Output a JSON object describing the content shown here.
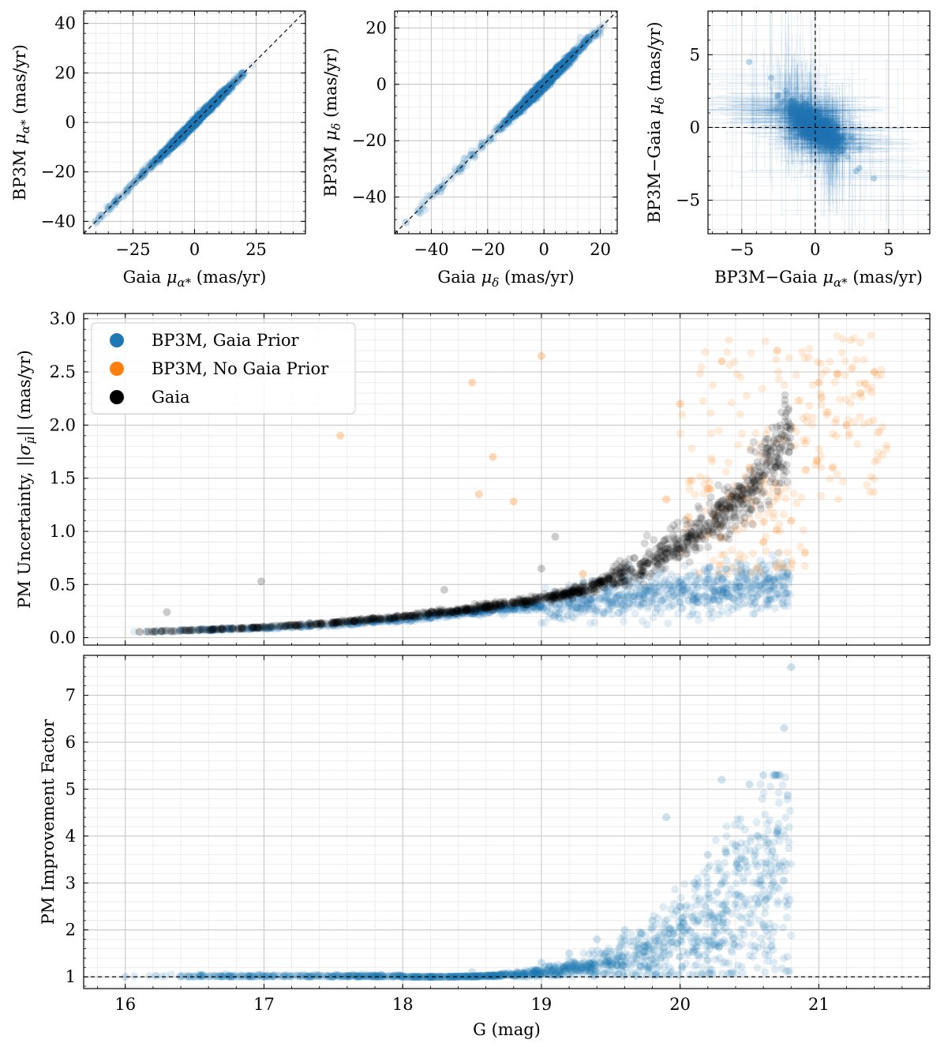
{
  "chart_data": [
    {
      "id": "top-left",
      "type": "scatter",
      "xlabel": "Gaia μα* (mas/yr)",
      "ylabel": "BP3M μα* (mas/yr)",
      "xlim": [
        -45,
        45
      ],
      "ylim": [
        -45,
        45
      ],
      "xticks": [
        -25,
        0,
        25
      ],
      "yticks": [
        -40,
        -20,
        0,
        20,
        40
      ],
      "xtick_labels": [
        "−25",
        "0",
        "25"
      ],
      "ytick_labels": [
        "−40",
        "−20",
        "0",
        "20",
        "40"
      ],
      "grid": true,
      "reference_line": "y = x (dashed)",
      "series": [
        {
          "color": "#1f77b4",
          "description": "points tightly along y=x",
          "x": [
            -40,
            -35,
            -31,
            -29,
            -26,
            -24,
            -22,
            -20,
            -18,
            -16,
            -14,
            -12,
            -10,
            -8,
            -6,
            -4,
            -2,
            0,
            1,
            2,
            3,
            4,
            5,
            6,
            7,
            8,
            9,
            10,
            12,
            14,
            16,
            18,
            20
          ],
          "y": [
            -40,
            -35,
            -31,
            -30,
            -26,
            -24,
            -22,
            -20,
            -18,
            -16,
            -14,
            -12,
            -10,
            -8,
            -6,
            -4,
            -2,
            0,
            1,
            2,
            3,
            4,
            5,
            6,
            7,
            8,
            9,
            10,
            12,
            14,
            16,
            18,
            20
          ]
        }
      ]
    },
    {
      "id": "top-middle",
      "type": "scatter",
      "xlabel": "Gaia μδ (mas/yr)",
      "ylabel": "BP3M μδ (mas/yr)",
      "xlim": [
        -53,
        26
      ],
      "ylim": [
        -53,
        26
      ],
      "xticks": [
        -40,
        -20,
        0,
        20
      ],
      "yticks": [
        -40,
        -20,
        0,
        20
      ],
      "xtick_labels": [
        "−40",
        "−20",
        "0",
        "20"
      ],
      "ytick_labels": [
        "−40",
        "−20",
        "0",
        "20"
      ],
      "grid": true,
      "reference_line": "y = x (dashed)",
      "series": [
        {
          "color": "#1f77b4",
          "x": [
            -49,
            -36,
            -30,
            -25,
            -22,
            -19,
            -16,
            -13,
            -10,
            -8,
            -6,
            -4,
            -2,
            0,
            1,
            2,
            3,
            4,
            5,
            6,
            7,
            8,
            9,
            10,
            12,
            14,
            16,
            18,
            20
          ],
          "y": [
            -49,
            -36,
            -30,
            -25,
            -22,
            -19,
            -16,
            -13,
            -10,
            -8,
            -6,
            -4,
            -2,
            0,
            1,
            2,
            3,
            4,
            5,
            6,
            7,
            8,
            9,
            10,
            12,
            14,
            16,
            18,
            20
          ]
        }
      ]
    },
    {
      "id": "top-right",
      "type": "scatter",
      "xlabel": "BP3M−Gaia μα* (mas/yr)",
      "ylabel": "BP3M−Gaia μδ (mas/yr)",
      "xlim": [
        -7.3,
        7.8
      ],
      "ylim": [
        -7.3,
        8.0
      ],
      "xticks": [
        -5,
        0,
        5
      ],
      "yticks": [
        -5,
        0,
        5
      ],
      "xtick_labels": [
        "−5",
        "0",
        "5"
      ],
      "ytick_labels": [
        "−5",
        "0",
        "5"
      ],
      "grid": true,
      "reference_lines": [
        "x = 0 (dashed)",
        "y = 0 (dashed)"
      ],
      "series": [
        {
          "color": "#1f77b4",
          "description": "cloud of residuals with error bars, anti-correlated",
          "x": [
            -0.5,
            0.3,
            -1.2,
            1.0,
            -2.0,
            2.2,
            -0.8,
            0.6,
            -3.0,
            3.0,
            -1.5,
            1.5,
            0.0,
            -0.3,
            0.8,
            -4.5,
            4.0,
            -2.5,
            2.8,
            -1.0,
            1.2
          ],
          "y": [
            0.8,
            -0.5,
            1.6,
            -1.2,
            2.5,
            -2.0,
            1.0,
            -0.6,
            3.4,
            -2.8,
            1.8,
            -1.5,
            0.2,
            0.6,
            -0.9,
            4.5,
            -3.5,
            2.2,
            -3.0,
            0.5,
            -0.2
          ]
        }
      ]
    },
    {
      "id": "middle",
      "type": "scatter",
      "xlabel": "",
      "ylabel": "PM Uncertainty, ||σμ̄|| (mas/yr)",
      "xlim": [
        15.7,
        21.8
      ],
      "ylim": [
        -0.07,
        3.05
      ],
      "xticks": [
        16,
        17,
        18,
        19,
        20,
        21
      ],
      "yticks": [
        0.0,
        0.5,
        1.0,
        1.5,
        2.0,
        2.5,
        3.0
      ],
      "ytick_labels": [
        "0.0",
        "0.5",
        "1.0",
        "1.5",
        "2.0",
        "2.5",
        "3.0"
      ],
      "grid": true,
      "legend_position": "upper-left",
      "legend": [
        "BP3M, Gaia Prior",
        "BP3M, No Gaia Prior",
        "Gaia"
      ],
      "series": [
        {
          "name": "BP3M, Gaia Prior",
          "color": "#1f77b4",
          "x": [
            16.0,
            16.5,
            17.0,
            17.5,
            18.0,
            18.5,
            19.0,
            19.3,
            19.5,
            19.7,
            19.9,
            20.1,
            20.3,
            20.5,
            20.7
          ],
          "y": [
            0.05,
            0.07,
            0.09,
            0.12,
            0.17,
            0.24,
            0.3,
            0.33,
            0.37,
            0.4,
            0.42,
            0.44,
            0.45,
            0.47,
            0.48
          ]
        },
        {
          "name": "BP3M, No Gaia Prior",
          "color": "#ff7f0e",
          "x": [
            17.55,
            18.5,
            18.55,
            18.65,
            18.8,
            19.0,
            19.3,
            19.9,
            20.0,
            20.2,
            20.3,
            20.5,
            20.6,
            20.7,
            20.8,
            20.9,
            21.0,
            21.1,
            21.2,
            21.3,
            21.4
          ],
          "y": [
            1.9,
            2.4,
            1.35,
            1.7,
            1.28,
            2.65,
            0.6,
            1.3,
            2.2,
            1.4,
            2.6,
            1.6,
            0.9,
            2.7,
            1.1,
            0.8,
            2.4,
            1.6,
            2.0,
            2.3,
            2.5
          ]
        },
        {
          "name": "Gaia",
          "color": "#000000",
          "x": [
            16.0,
            16.5,
            17.0,
            17.5,
            18.0,
            18.5,
            19.0,
            19.3,
            19.5,
            19.7,
            19.9,
            20.1,
            20.3,
            20.5,
            20.6,
            20.7,
            20.8
          ],
          "y": [
            0.05,
            0.07,
            0.1,
            0.14,
            0.2,
            0.27,
            0.36,
            0.45,
            0.55,
            0.65,
            0.8,
            0.95,
            1.15,
            1.4,
            1.55,
            1.75,
            1.95
          ]
        }
      ]
    },
    {
      "id": "bottom",
      "type": "scatter",
      "xlabel": "G (mag)",
      "ylabel": "PM Improvement Factor",
      "xlim": [
        15.7,
        21.8
      ],
      "ylim": [
        0.75,
        7.85
      ],
      "xticks": [
        16,
        17,
        18,
        19,
        20,
        21
      ],
      "yticks": [
        1,
        2,
        3,
        4,
        5,
        6,
        7
      ],
      "grid": true,
      "reference_line": "y = 1 (dashed)",
      "series": [
        {
          "color": "#1f77b4",
          "x": [
            16.0,
            16.5,
            17.0,
            17.5,
            18.0,
            18.5,
            19.0,
            19.2,
            19.4,
            19.6,
            19.8,
            19.9,
            20.0,
            20.1,
            20.2,
            20.3,
            20.4,
            20.5,
            20.6,
            20.7,
            20.75,
            20.8
          ],
          "y": [
            1.0,
            1.0,
            1.0,
            1.0,
            1.02,
            1.1,
            1.3,
            1.5,
            1.8,
            2.0,
            2.2,
            4.4,
            2.5,
            3.0,
            3.6,
            5.2,
            3.8,
            5.1,
            5.3,
            4.1,
            6.3,
            7.6
          ]
        }
      ]
    }
  ]
}
